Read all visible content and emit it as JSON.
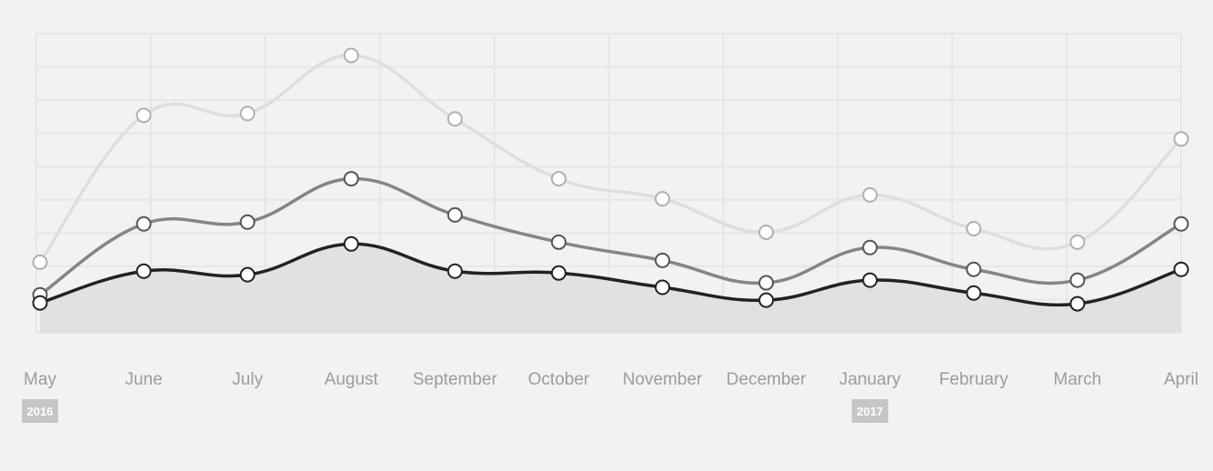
{
  "chart_data": {
    "type": "line",
    "categories": [
      "May",
      "June",
      "July",
      "August",
      "September",
      "October",
      "November",
      "December",
      "January",
      "February",
      "March",
      "April"
    ],
    "year_markers": [
      {
        "category_index": 0,
        "label": "2016"
      },
      {
        "category_index": 8,
        "label": "2017"
      }
    ],
    "ylim": [
      0,
      100
    ],
    "grid": true,
    "smooth": true,
    "series": [
      {
        "values": [
          23.6,
          72.7,
          73.3,
          92.7,
          71.5,
          51.5,
          44.8,
          33.6,
          46.1,
          34.8,
          30.3,
          64.8
        ],
        "color": "#dedede",
        "area": false
      },
      {
        "values": [
          12.7,
          36.4,
          37.0,
          51.5,
          39.4,
          30.3,
          24.2,
          16.7,
          28.5,
          21.2,
          17.6,
          36.4
        ],
        "color": "#858585",
        "area": false
      },
      {
        "values": [
          10.0,
          20.6,
          19.4,
          29.7,
          20.6,
          20.0,
          15.2,
          10.9,
          17.6,
          13.3,
          9.7,
          21.2
        ],
        "color": "#222222",
        "area": true,
        "area_color": "#e1e1e1"
      }
    ]
  }
}
